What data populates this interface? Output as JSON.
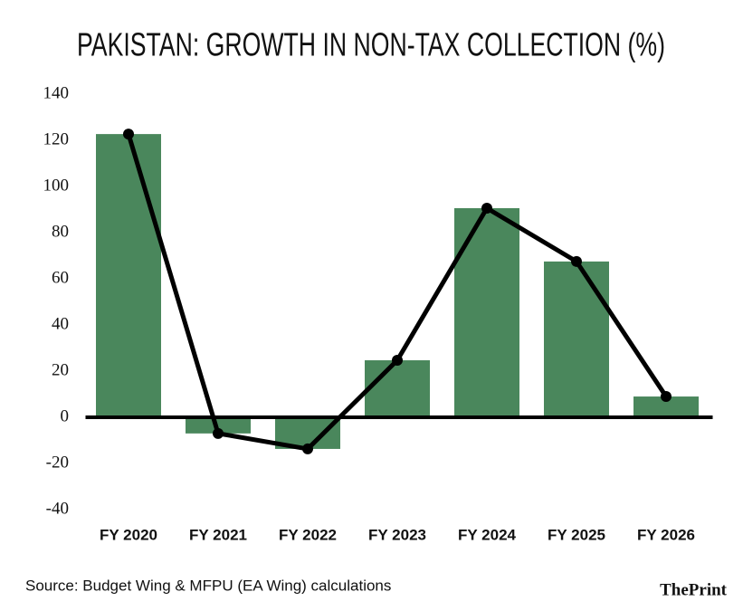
{
  "chart_data": {
    "type": "bar",
    "title": "PAKISTAN: GROWTH IN NON-TAX COLLECTION (%)",
    "categories": [
      "FY 2020",
      "FY 2021",
      "FY 2022",
      "FY 2023",
      "FY 2024",
      "FY 2025",
      "FY 2026"
    ],
    "values": [
      122.7,
      -7,
      -13.7,
      24.7,
      90.6,
      67.5,
      9
    ],
    "color": "#4a875c",
    "line": true,
    "line_color": "#000000",
    "ylim": [
      -40,
      140
    ],
    "yticks": [
      -40,
      -20,
      0,
      20,
      40,
      60,
      80,
      100,
      120,
      140
    ],
    "grid": false,
    "source": "Source: Budget Wing & MFPU (EA Wing) calculations",
    "brand": "ThePrint"
  }
}
